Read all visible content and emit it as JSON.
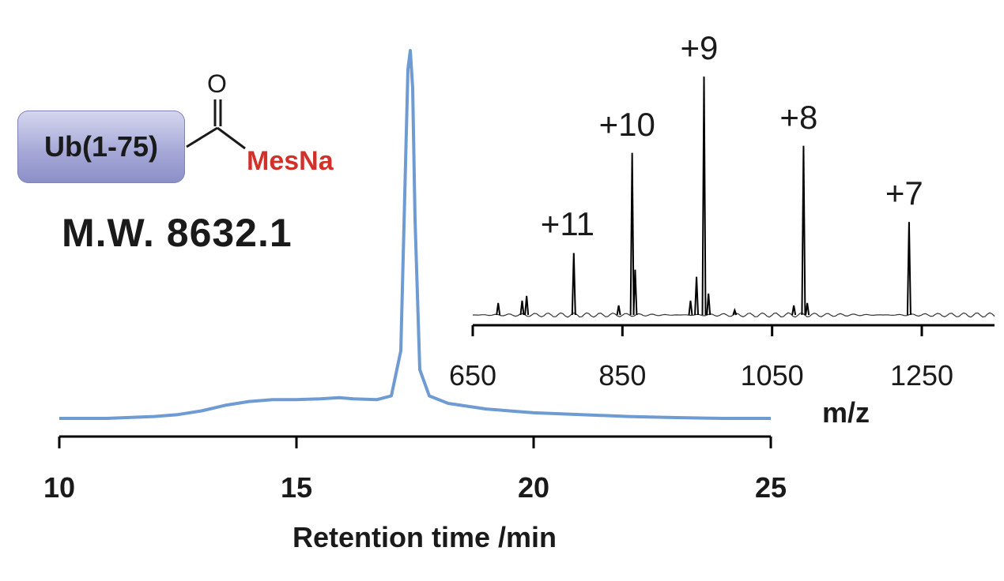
{
  "structure": {
    "box_label": "Ub(1-75)",
    "oxygen_label": "O",
    "reagent_label": "MesNa",
    "reagent_color": "#d1312a",
    "box_color": "#a3a6d6",
    "mw_label": "M.W. 8632.1"
  },
  "chart_data": [
    {
      "type": "line",
      "xlabel": "Retention time /min",
      "ylabel": "",
      "xlim": [
        10,
        25
      ],
      "x_ticks": [
        "10",
        "15",
        "20",
        "25"
      ],
      "y_axis_visible": false,
      "grid": false,
      "color": "#6e9bd2",
      "series": [
        {
          "x": [
            10,
            11,
            12,
            12.5,
            13,
            13.5,
            14,
            14.5,
            15,
            15.5,
            15.9,
            16.2,
            16.7,
            17.0,
            17.2,
            17.3,
            17.35,
            17.4,
            17.45,
            17.5,
            17.6,
            17.8,
            18.2,
            19,
            20,
            21,
            22,
            23,
            24,
            25
          ],
          "y": [
            0.02,
            0.02,
            0.025,
            0.03,
            0.04,
            0.055,
            0.065,
            0.07,
            0.07,
            0.072,
            0.075,
            0.072,
            0.07,
            0.08,
            0.2,
            0.7,
            0.95,
            1.0,
            0.9,
            0.55,
            0.15,
            0.08,
            0.06,
            0.045,
            0.035,
            0.03,
            0.025,
            0.022,
            0.02,
            0.02
          ]
        }
      ]
    },
    {
      "type": "line",
      "xlabel": "m/z",
      "ylabel": "",
      "xlim": [
        650,
        1350
      ],
      "x_ticks": [
        "650",
        "850",
        "1050",
        "1250"
      ],
      "y_axis_visible": false,
      "grid": false,
      "color": "#000000",
      "peaks": [
        {
          "mz": 684,
          "intensity": 0.05
        },
        {
          "mz": 716,
          "intensity": 0.06
        },
        {
          "mz": 722,
          "intensity": 0.08
        },
        {
          "mz": 785,
          "intensity": 0.26
        },
        {
          "mz": 845,
          "intensity": 0.04
        },
        {
          "mz": 863,
          "intensity": 0.68
        },
        {
          "mz": 867,
          "intensity": 0.19
        },
        {
          "mz": 941,
          "intensity": 0.06
        },
        {
          "mz": 949,
          "intensity": 0.16
        },
        {
          "mz": 959,
          "intensity": 1.0
        },
        {
          "mz": 965,
          "intensity": 0.09
        },
        {
          "mz": 1000,
          "intensity": 0.02
        },
        {
          "mz": 1079,
          "intensity": 0.04
        },
        {
          "mz": 1092,
          "intensity": 0.71
        },
        {
          "mz": 1097,
          "intensity": 0.05
        },
        {
          "mz": 1233,
          "intensity": 0.39
        }
      ],
      "annotations": [
        {
          "text": "+11",
          "mz": 785
        },
        {
          "text": "+10",
          "mz": 863
        },
        {
          "text": "+9",
          "mz": 959
        },
        {
          "text": "+8",
          "mz": 1092
        },
        {
          "text": "+7",
          "mz": 1233
        }
      ]
    }
  ]
}
